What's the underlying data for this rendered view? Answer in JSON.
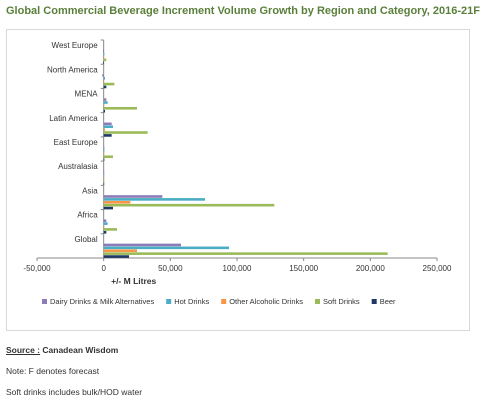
{
  "title": "Global Commercial Beverage Increment Volume Growth by Region and Category, 2016-21F",
  "source": {
    "label": "Source :",
    "value": "Canadean Wisdom"
  },
  "notes": [
    "Note: F denotes forecast",
    "Soft drinks includes bulk/HOD water"
  ],
  "chart_data": {
    "type": "bar",
    "orientation": "horizontal",
    "title": "Global Commercial Beverage Increment Volume Growth by Region and Category, 2016-21F",
    "xlabel": "+/- M Litres",
    "ylabel": "",
    "xlim": [
      -50000,
      250000
    ],
    "xticks": [
      -50000,
      0,
      50000,
      100000,
      150000,
      200000,
      250000
    ],
    "xtick_labels": [
      "-50,000",
      "0",
      "50,000",
      "100,000",
      "150,000",
      "200,000",
      "250,000"
    ],
    "grid": false,
    "legend_position": "bottom",
    "categories": [
      "West Europe",
      "North America",
      "MENA",
      "Latin America",
      "East Europe",
      "Australasia",
      "Asia",
      "Africa",
      "Global"
    ],
    "series": [
      {
        "name": "Dairy Drinks & Milk Alternatives",
        "color": "#8b7bb8",
        "values": [
          -500,
          -1000,
          2000,
          6000,
          500,
          200,
          44000,
          2000,
          58000
        ]
      },
      {
        "name": "Hot Drinks",
        "color": "#4bacc6",
        "values": [
          500,
          1000,
          3000,
          7000,
          500,
          200,
          76000,
          3000,
          94000
        ]
      },
      {
        "name": "Other Alcoholic Drinks",
        "color": "#f79646",
        "values": [
          -500,
          -500,
          500,
          1000,
          0,
          100,
          20000,
          500,
          25000
        ]
      },
      {
        "name": "Soft Drinks",
        "color": "#9bbb59",
        "values": [
          2000,
          8000,
          25000,
          33000,
          7000,
          300,
          128000,
          10000,
          213000
        ]
      },
      {
        "name": "Beer",
        "color": "#1f3864",
        "values": [
          -500,
          2000,
          1000,
          6000,
          500,
          100,
          7000,
          2000,
          19000
        ]
      }
    ]
  }
}
